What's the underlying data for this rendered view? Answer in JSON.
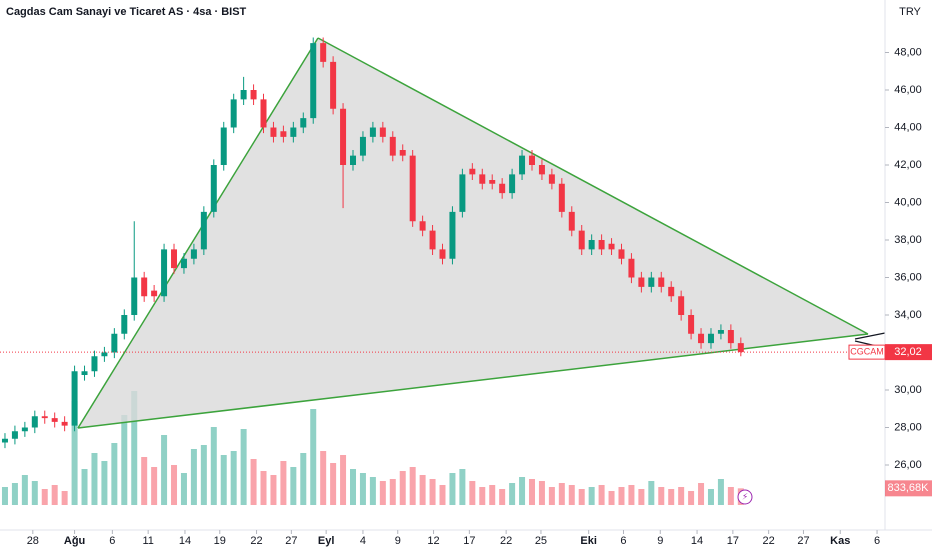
{
  "chart_data": {
    "type": "candlestick",
    "title": "Cagdas Cam Sanayi ve Ticaret AS · 4sa · BIST",
    "currency": "TRY",
    "up_color": "#089981",
    "down_color": "#f23645",
    "open": [
      27.2,
      27.4,
      27.8,
      28.0,
      28.6,
      28.5,
      28.3,
      28.1,
      30.8,
      31.0,
      31.8,
      32.0,
      33.0,
      34.0,
      36.0,
      35.3,
      35.0,
      37.5,
      36.5,
      37.0,
      37.5,
      39.5,
      42.0,
      44.0,
      45.5,
      46.0,
      45.5,
      44.0,
      43.8,
      43.5,
      44.0,
      44.5,
      48.5,
      47.5,
      45.0,
      42.0,
      42.5,
      43.5,
      44.0,
      43.5,
      42.8,
      42.5,
      39.0,
      38.5,
      37.5,
      37.0,
      39.5,
      41.8,
      41.5,
      41.2,
      41.0,
      40.5,
      41.5,
      42.5,
      42.0,
      41.5,
      41.0,
      39.5,
      38.5,
      37.5,
      38.0,
      37.8,
      37.5,
      37.0,
      36.0,
      35.5,
      36.0,
      35.5,
      35.0,
      34.0,
      33.0,
      32.5,
      33.0,
      33.2,
      32.5
    ],
    "high": [
      27.7,
      28.1,
      28.3,
      28.9,
      28.9,
      28.8,
      28.6,
      31.3,
      31.3,
      32.1,
      32.3,
      33.3,
      34.3,
      39.0,
      36.3,
      35.6,
      37.8,
      37.8,
      37.3,
      37.8,
      39.8,
      42.3,
      44.3,
      45.8,
      46.7,
      46.3,
      45.8,
      44.3,
      44.1,
      44.3,
      44.8,
      48.8,
      48.8,
      47.8,
      45.3,
      42.8,
      43.8,
      44.3,
      44.3,
      43.8,
      43.1,
      42.8,
      39.3,
      38.8,
      37.8,
      39.8,
      41.8,
      42.1,
      41.8,
      41.5,
      41.3,
      41.8,
      42.8,
      42.8,
      42.3,
      41.8,
      41.3,
      39.8,
      38.8,
      38.3,
      38.3,
      38.1,
      37.8,
      37.3,
      36.3,
      36.3,
      36.3,
      35.8,
      35.3,
      34.3,
      33.3,
      33.3,
      33.5,
      33.5,
      32.8
    ],
    "low": [
      26.9,
      27.1,
      27.5,
      27.7,
      28.2,
      28.0,
      27.8,
      27.8,
      30.5,
      30.7,
      31.5,
      31.7,
      32.7,
      33.7,
      34.7,
      34.7,
      34.7,
      36.2,
      36.2,
      36.7,
      37.2,
      39.2,
      41.7,
      43.7,
      45.2,
      45.2,
      43.7,
      43.2,
      43.2,
      43.2,
      43.7,
      44.2,
      47.2,
      44.7,
      39.7,
      41.7,
      42.2,
      43.2,
      43.2,
      42.2,
      42.2,
      38.7,
      38.2,
      37.2,
      36.7,
      36.7,
      39.2,
      41.2,
      40.7,
      40.7,
      40.2,
      40.2,
      41.2,
      41.7,
      41.2,
      40.7,
      39.2,
      38.2,
      37.2,
      37.2,
      37.2,
      37.2,
      36.7,
      35.7,
      35.2,
      35.2,
      35.2,
      34.7,
      33.7,
      32.7,
      32.2,
      32.2,
      32.7,
      32.2,
      31.8
    ],
    "close": [
      27.4,
      27.8,
      28.0,
      28.6,
      28.5,
      28.3,
      28.1,
      31.0,
      31.0,
      31.8,
      32.0,
      33.0,
      34.0,
      36.0,
      35.0,
      35.0,
      37.5,
      36.5,
      37.0,
      37.5,
      39.5,
      42.0,
      44.0,
      45.5,
      46.0,
      45.5,
      44.0,
      43.5,
      43.5,
      44.0,
      44.5,
      48.5,
      47.5,
      45.0,
      42.0,
      42.5,
      43.5,
      44.0,
      43.5,
      42.5,
      42.5,
      39.0,
      38.5,
      37.5,
      37.0,
      39.5,
      41.5,
      41.5,
      41.0,
      41.0,
      40.5,
      41.5,
      42.5,
      42.0,
      41.5,
      41.0,
      39.5,
      38.5,
      37.5,
      38.0,
      37.5,
      37.5,
      37.0,
      36.0,
      35.5,
      36.0,
      35.5,
      35.0,
      34.0,
      33.0,
      32.5,
      33.0,
      33.2,
      32.5,
      32.02
    ],
    "volume": [
      900000,
      1100000,
      1500000,
      1200000,
      800000,
      1000000,
      700000,
      5200000,
      1800000,
      2600000,
      2200000,
      3100000,
      4500000,
      5700000,
      2400000,
      1900000,
      3500000,
      2000000,
      1600000,
      2800000,
      3000000,
      3900000,
      2500000,
      2700000,
      3800000,
      2300000,
      1700000,
      1500000,
      2200000,
      1900000,
      2600000,
      4800000,
      2700000,
      2100000,
      2500000,
      1800000,
      1600000,
      1400000,
      1200000,
      1300000,
      1700000,
      1900000,
      1500000,
      1300000,
      1000000,
      1600000,
      1800000,
      1200000,
      900000,
      1000000,
      800000,
      1100000,
      1400000,
      1300000,
      1200000,
      900000,
      1100000,
      1000000,
      800000,
      900000,
      1000000,
      700000,
      900000,
      1000000,
      800000,
      1200000,
      900000,
      800000,
      900000,
      700000,
      1100000,
      800000,
      1300000,
      900000,
      833680
    ],
    "volume_lim": [
      0,
      7500000
    ],
    "volume_label": {
      "value": 833680,
      "label": "833,68K"
    },
    "last_price": {
      "symbol": "CGCAM",
      "value": 32.02,
      "label": "32,02"
    },
    "xlim": [
      -0.5,
      88.5
    ],
    "xticks": [
      {
        "value": 2.8,
        "label": "28"
      },
      {
        "value": 7,
        "label": "Ağu"
      },
      {
        "value": 10.8,
        "label": "6"
      },
      {
        "value": 14.4,
        "label": "11"
      },
      {
        "value": 18.1,
        "label": "14"
      },
      {
        "value": 21.6,
        "label": "19"
      },
      {
        "value": 25.3,
        "label": "22"
      },
      {
        "value": 28.8,
        "label": "27"
      },
      {
        "value": 32.3,
        "label": "Eyl"
      },
      {
        "value": 36,
        "label": "4"
      },
      {
        "value": 39.5,
        "label": "9"
      },
      {
        "value": 43.1,
        "label": "12"
      },
      {
        "value": 46.7,
        "label": "17"
      },
      {
        "value": 50.4,
        "label": "22"
      },
      {
        "value": 53.9,
        "label": "25"
      },
      {
        "value": 58.7,
        "label": "Eki"
      },
      {
        "value": 62.2,
        "label": "6"
      },
      {
        "value": 65.9,
        "label": "9"
      },
      {
        "value": 69.6,
        "label": "14"
      },
      {
        "value": 73.2,
        "label": "17"
      },
      {
        "value": 76.8,
        "label": "22"
      },
      {
        "value": 80.3,
        "label": "27"
      },
      {
        "value": 84,
        "label": "Kas"
      },
      {
        "value": 87.7,
        "label": "6"
      }
    ],
    "ylim": [
      23.6,
      50.8
    ],
    "yticks": [
      {
        "value": 26,
        "label": "26,00"
      },
      {
        "value": 28,
        "label": "28,00"
      },
      {
        "value": 30,
        "label": "30,00"
      },
      {
        "value": 32,
        "label": "32,00"
      },
      {
        "value": 34,
        "label": "34,00"
      },
      {
        "value": 36,
        "label": "36,00"
      },
      {
        "value": 38,
        "label": "38,00"
      },
      {
        "value": 40,
        "label": "40,00"
      },
      {
        "value": 42,
        "label": "42,00"
      },
      {
        "value": 44,
        "label": "44,00"
      },
      {
        "value": 46,
        "label": "46,00"
      },
      {
        "value": 48,
        "label": "48,00"
      }
    ]
  }
}
